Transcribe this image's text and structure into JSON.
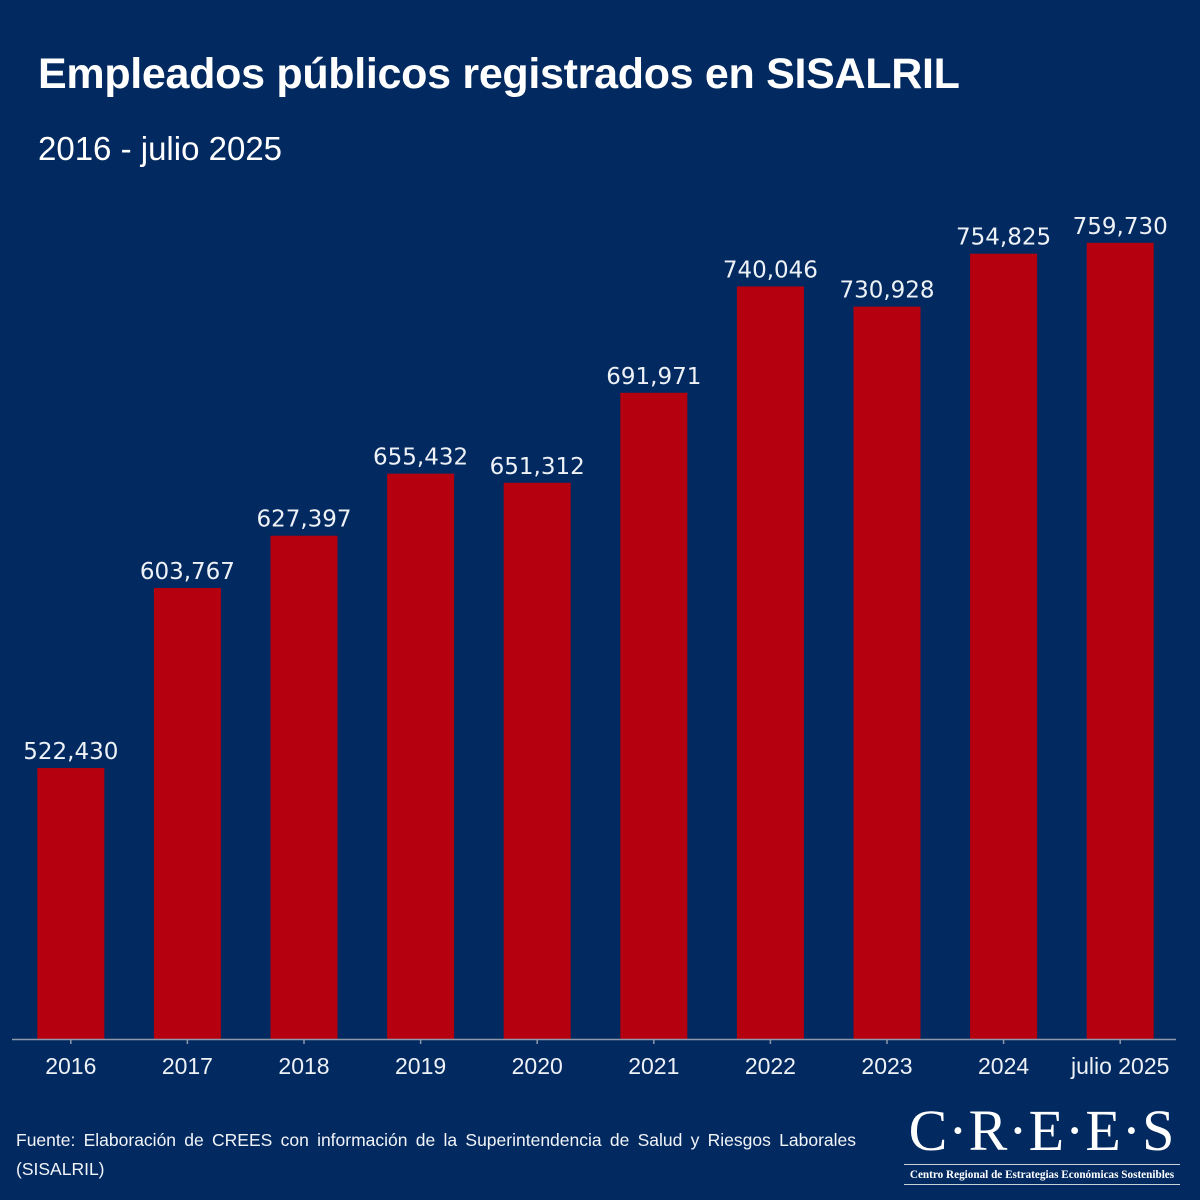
{
  "header": {
    "title": "Empleados públicos registrados en SISALRIL",
    "subtitle": "2016 - julio 2025"
  },
  "footer": {
    "source": "Fuente: Elaboración de CREES con información de la Superintendencia de Salud y Riesgos Laborales (SISALRIL)",
    "logo_main": "C·R·E·E·S",
    "logo_sub": "Centro Regional de Estrategias Económicas Sostenibles"
  },
  "colors": {
    "background": "#032a60",
    "bar": "#b5000f",
    "text": "#ffffff"
  },
  "chart_data": {
    "type": "bar",
    "title": "Empleados públicos registrados en SISALRIL",
    "subtitle": "2016 - julio 2025",
    "xlabel": "",
    "ylabel": "",
    "categories": [
      "2016",
      "2017",
      "2018",
      "2019",
      "2020",
      "2021",
      "2022",
      "2023",
      "2024",
      "julio 2025"
    ],
    "values": [
      522430,
      603767,
      627397,
      655432,
      651312,
      691971,
      740046,
      730928,
      754825,
      759730
    ],
    "labels": [
      "522,430",
      "603,767",
      "627,397",
      "655,432",
      "651,312",
      "691,971",
      "740,046",
      "730,928",
      "754,825",
      "759,730"
    ],
    "ylim": [
      400000,
      780000
    ],
    "grid": false,
    "legend": "none",
    "y_axis_visible": false
  }
}
